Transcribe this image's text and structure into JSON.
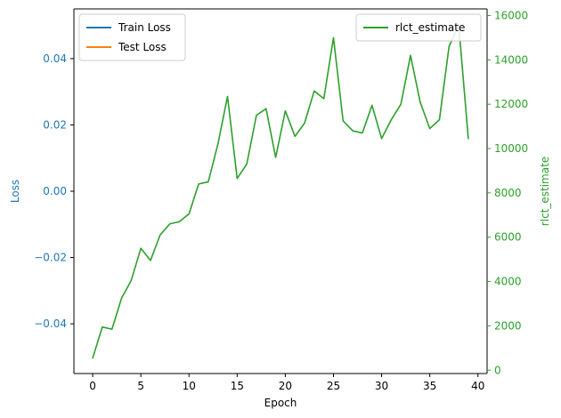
{
  "chart_data": {
    "type": "line",
    "title": "",
    "xlabel": "Epoch",
    "ylabel_left": "Loss",
    "ylabel_right": "rlct_estimate",
    "xlim": [
      -1.95,
      40.95
    ],
    "ylim_left": [
      -0.055,
      0.055
    ],
    "ylim_right": [
      -150,
      16300
    ],
    "x_ticks": [
      0,
      5,
      10,
      15,
      20,
      25,
      30,
      35,
      40
    ],
    "x_tick_labels": [
      "0",
      "5",
      "10",
      "15",
      "20",
      "25",
      "30",
      "35",
      "40"
    ],
    "y_left_ticks": [
      -0.04,
      -0.02,
      0.0,
      0.02,
      0.04
    ],
    "y_left_tick_labels": [
      "−0.04",
      "−0.02",
      "0.00",
      "0.02",
      "0.04"
    ],
    "y_right_ticks": [
      0,
      2000,
      4000,
      6000,
      8000,
      10000,
      12000,
      14000,
      16000
    ],
    "y_right_tick_labels": [
      "0",
      "2000",
      "4000",
      "6000",
      "8000",
      "10000",
      "12000",
      "14000",
      "16000"
    ],
    "grid": false,
    "left_legend": {
      "placement": "upper-left",
      "entries": [
        {
          "name": "Train Loss",
          "color": "#1f77b4"
        },
        {
          "name": "Test Loss",
          "color": "#ff7f0e"
        }
      ]
    },
    "right_legend": {
      "placement": "upper-right",
      "entries": [
        {
          "name": "rlct_estimate",
          "color": "#2ca02c"
        }
      ]
    },
    "left_axis_color": "#1f77b4",
    "right_axis_color": "#2ca02c",
    "series": [
      {
        "name": "Train Loss",
        "axis": "left",
        "color": "#1f77b4",
        "x": [],
        "values": []
      },
      {
        "name": "Test Loss",
        "axis": "left",
        "color": "#ff7f0e",
        "x": [],
        "values": []
      },
      {
        "name": "rlct_estimate",
        "axis": "right",
        "color": "#2ca02c",
        "x": [
          0,
          1,
          2,
          3,
          4,
          5,
          6,
          7,
          8,
          9,
          10,
          11,
          12,
          13,
          14,
          15,
          16,
          17,
          18,
          19,
          20,
          21,
          22,
          23,
          24,
          25,
          26,
          27,
          28,
          29,
          30,
          31,
          32,
          33,
          34,
          35,
          36,
          37,
          38,
          39
        ],
        "values": [
          550,
          1950,
          1850,
          3250,
          4050,
          5500,
          4950,
          6100,
          6600,
          6700,
          7050,
          8400,
          8500,
          10200,
          12350,
          8650,
          9300,
          11500,
          11800,
          9600,
          11700,
          10550,
          11150,
          12600,
          12250,
          15000,
          11250,
          10800,
          10700,
          11950,
          10450,
          11300,
          12000,
          14200,
          12100,
          10900,
          11300,
          14600,
          15600,
          10450
        ]
      }
    ]
  }
}
